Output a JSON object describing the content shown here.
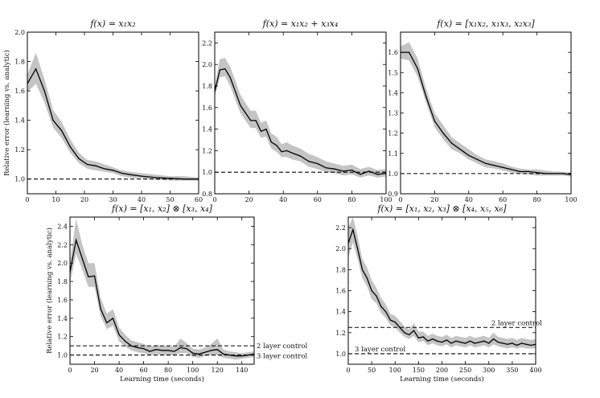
{
  "chart_data": [
    {
      "type": "line",
      "title": "f(x) = x₁x₂",
      "ylabel": "Relative error (learning vs. analytic)",
      "xlabel": "",
      "xlim": [
        0,
        60
      ],
      "ylim": [
        0.9,
        2.0
      ],
      "xticks": [
        0,
        10,
        20,
        30,
        40,
        50,
        60
      ],
      "yticks": [
        1.0,
        1.2,
        1.4,
        1.6,
        1.8,
        2.0
      ],
      "x": [
        0,
        3,
        6,
        9,
        12,
        15,
        18,
        21,
        24,
        27,
        30,
        33,
        36,
        40,
        45,
        50,
        55,
        60
      ],
      "y": [
        1.65,
        1.75,
        1.6,
        1.4,
        1.33,
        1.22,
        1.14,
        1.1,
        1.09,
        1.07,
        1.06,
        1.04,
        1.03,
        1.02,
        1.01,
        1.005,
        1.0,
        1.0
      ],
      "lower": [
        1.59,
        1.65,
        1.52,
        1.35,
        1.28,
        1.18,
        1.11,
        1.07,
        1.06,
        1.05,
        1.04,
        1.02,
        1.01,
        1.005,
        0.995,
        0.99,
        0.99,
        0.99
      ],
      "upper": [
        1.71,
        1.86,
        1.68,
        1.47,
        1.39,
        1.27,
        1.18,
        1.13,
        1.12,
        1.1,
        1.08,
        1.06,
        1.05,
        1.04,
        1.03,
        1.02,
        1.02,
        1.01
      ],
      "hlines": [
        {
          "y": 1.0,
          "label": ""
        }
      ]
    },
    {
      "type": "line",
      "title": "f(x) = x₁x₂ + x₃x₄",
      "xlabel": "",
      "ylabel": "",
      "xlim": [
        0,
        100
      ],
      "ylim": [
        0.8,
        2.3
      ],
      "xticks": [
        0,
        20,
        40,
        60,
        80,
        100
      ],
      "yticks": [
        0.8,
        1.0,
        1.2,
        1.4,
        1.6,
        1.8,
        2.0,
        2.2
      ],
      "x": [
        0,
        3,
        6,
        9,
        12,
        15,
        18,
        21,
        24,
        27,
        30,
        33,
        36,
        39,
        42,
        45,
        50,
        55,
        60,
        65,
        70,
        75,
        80,
        85,
        90,
        95,
        100
      ],
      "y": [
        1.75,
        1.95,
        1.96,
        1.88,
        1.75,
        1.62,
        1.55,
        1.48,
        1.48,
        1.38,
        1.4,
        1.28,
        1.25,
        1.19,
        1.2,
        1.18,
        1.15,
        1.1,
        1.08,
        1.04,
        1.03,
        1.01,
        1.02,
        0.98,
        1.01,
        0.98,
        0.99
      ],
      "lower": [
        1.7,
        1.88,
        1.89,
        1.8,
        1.67,
        1.55,
        1.48,
        1.41,
        1.41,
        1.32,
        1.33,
        1.22,
        1.19,
        1.14,
        1.14,
        1.12,
        1.1,
        1.05,
        1.03,
        1.0,
        0.99,
        0.97,
        0.98,
        0.95,
        0.97,
        0.95,
        0.96
      ],
      "upper": [
        1.8,
        2.05,
        2.06,
        1.98,
        1.85,
        1.72,
        1.64,
        1.57,
        1.57,
        1.46,
        1.48,
        1.36,
        1.33,
        1.26,
        1.28,
        1.25,
        1.22,
        1.17,
        1.14,
        1.1,
        1.08,
        1.06,
        1.07,
        1.03,
        1.05,
        1.02,
        1.03
      ],
      "hlines": [
        {
          "y": 1.0,
          "label": ""
        }
      ]
    },
    {
      "type": "line",
      "title": "f(x) = [x₁x₂, x₁x₃, x₂x₃]",
      "xlabel": "",
      "ylabel": "",
      "xlim": [
        0,
        100
      ],
      "ylim": [
        0.9,
        1.7
      ],
      "xticks": [
        0,
        20,
        40,
        60,
        80,
        100
      ],
      "yticks": [
        0.9,
        1.0,
        1.1,
        1.2,
        1.3,
        1.4,
        1.5,
        1.6
      ],
      "x": [
        0,
        5,
        10,
        15,
        20,
        25,
        30,
        35,
        40,
        45,
        50,
        55,
        60,
        65,
        70,
        75,
        80,
        85,
        90,
        95,
        100
      ],
      "y": [
        1.6,
        1.6,
        1.52,
        1.38,
        1.26,
        1.2,
        1.15,
        1.12,
        1.09,
        1.07,
        1.05,
        1.04,
        1.03,
        1.02,
        1.01,
        1.01,
        1.005,
        1.0,
        1.0,
        1.0,
        0.995
      ],
      "lower": [
        1.57,
        1.56,
        1.48,
        1.35,
        1.23,
        1.17,
        1.12,
        1.1,
        1.07,
        1.05,
        1.03,
        1.025,
        1.015,
        1.005,
        1.0,
        0.995,
        0.99,
        0.99,
        0.99,
        0.99,
        0.985
      ],
      "upper": [
        1.63,
        1.65,
        1.57,
        1.42,
        1.3,
        1.24,
        1.18,
        1.15,
        1.12,
        1.09,
        1.07,
        1.06,
        1.05,
        1.035,
        1.025,
        1.02,
        1.02,
        1.015,
        1.01,
        1.01,
        1.005
      ],
      "hlines": [
        {
          "y": 1.0,
          "label": ""
        }
      ]
    },
    {
      "type": "line",
      "title": "f(x) = [x₁, x₂] ⊗ [x₃, x₄]",
      "xlabel": "Learning time (seconds)",
      "ylabel": "Relative error (learning vs. analytic)",
      "xlim": [
        0,
        150
      ],
      "ylim": [
        0.9,
        2.5
      ],
      "xticks": [
        0,
        20,
        40,
        60,
        80,
        100,
        120,
        140
      ],
      "yticks": [
        1.0,
        1.2,
        1.4,
        1.6,
        1.8,
        2.0,
        2.2,
        2.4
      ],
      "x": [
        0,
        5,
        10,
        15,
        20,
        25,
        30,
        35,
        40,
        45,
        50,
        55,
        60,
        65,
        70,
        75,
        80,
        85,
        90,
        95,
        100,
        105,
        110,
        115,
        120,
        125,
        130,
        135,
        140,
        145,
        150
      ],
      "y": [
        1.9,
        2.25,
        2.05,
        1.85,
        1.86,
        1.5,
        1.35,
        1.4,
        1.22,
        1.15,
        1.1,
        1.08,
        1.07,
        1.04,
        1.06,
        1.05,
        1.05,
        1.04,
        1.08,
        1.07,
        1.02,
        1.01,
        1.03,
        1.05,
        1.06,
        1.01,
        1.0,
        0.99,
        0.99,
        1.0,
        1.01
      ],
      "lower": [
        1.78,
        2.1,
        1.93,
        1.74,
        1.74,
        1.42,
        1.28,
        1.32,
        1.15,
        1.09,
        1.05,
        1.03,
        1.02,
        1.0,
        1.01,
        1.0,
        1.0,
        1.0,
        1.02,
        1.02,
        0.98,
        0.97,
        0.99,
        1.0,
        1.0,
        0.97,
        0.96,
        0.95,
        0.96,
        0.97,
        0.98
      ],
      "upper": [
        2.0,
        2.48,
        2.2,
        2.0,
        2.0,
        1.62,
        1.45,
        1.5,
        1.3,
        1.22,
        1.16,
        1.14,
        1.12,
        1.09,
        1.11,
        1.1,
        1.1,
        1.09,
        1.18,
        1.13,
        1.07,
        1.06,
        1.08,
        1.12,
        1.18,
        1.06,
        1.04,
        1.03,
        1.02,
        1.03,
        1.04
      ],
      "hlines": [
        {
          "y": 1.1,
          "label": "2 layer control"
        },
        {
          "y": 1.0,
          "label": "3 layer control"
        }
      ]
    },
    {
      "type": "line",
      "title": "f(x) = [x₁, x₂, x₃] ⊗ [x₄, x₅, x₆]",
      "xlabel": "Learning time (seconds)",
      "ylabel": "",
      "xlim": [
        0,
        400
      ],
      "ylim": [
        0.9,
        2.3
      ],
      "xticks": [
        0,
        50,
        100,
        150,
        200,
        250,
        300,
        350,
        400
      ],
      "yticks": [
        1.0,
        1.2,
        1.4,
        1.6,
        1.8,
        2.0,
        2.2
      ],
      "x": [
        0,
        10,
        20,
        30,
        40,
        50,
        60,
        70,
        80,
        90,
        100,
        110,
        120,
        130,
        140,
        150,
        160,
        170,
        180,
        190,
        200,
        210,
        220,
        230,
        240,
        250,
        260,
        270,
        280,
        290,
        300,
        310,
        320,
        330,
        340,
        350,
        360,
        370,
        380,
        390,
        400
      ],
      "y": [
        2.05,
        2.18,
        2.0,
        1.8,
        1.72,
        1.6,
        1.55,
        1.45,
        1.4,
        1.32,
        1.3,
        1.25,
        1.2,
        1.18,
        1.22,
        1.15,
        1.16,
        1.12,
        1.14,
        1.12,
        1.11,
        1.13,
        1.1,
        1.12,
        1.11,
        1.1,
        1.12,
        1.1,
        1.11,
        1.12,
        1.1,
        1.14,
        1.11,
        1.1,
        1.09,
        1.1,
        1.08,
        1.1,
        1.09,
        1.08,
        1.09
      ],
      "lower": [
        1.92,
        2.06,
        1.9,
        1.72,
        1.64,
        1.52,
        1.48,
        1.39,
        1.34,
        1.27,
        1.25,
        1.2,
        1.16,
        1.14,
        1.17,
        1.11,
        1.12,
        1.08,
        1.1,
        1.08,
        1.07,
        1.09,
        1.06,
        1.08,
        1.07,
        1.06,
        1.08,
        1.06,
        1.07,
        1.08,
        1.06,
        1.09,
        1.07,
        1.06,
        1.05,
        1.06,
        1.05,
        1.06,
        1.05,
        1.05,
        1.05
      ],
      "upper": [
        2.2,
        2.3,
        2.12,
        1.9,
        1.82,
        1.7,
        1.63,
        1.53,
        1.47,
        1.38,
        1.36,
        1.31,
        1.26,
        1.23,
        1.29,
        1.21,
        1.21,
        1.17,
        1.19,
        1.17,
        1.16,
        1.18,
        1.15,
        1.17,
        1.16,
        1.15,
        1.17,
        1.15,
        1.16,
        1.17,
        1.15,
        1.2,
        1.16,
        1.15,
        1.14,
        1.15,
        1.13,
        1.15,
        1.14,
        1.13,
        1.14
      ],
      "hlines": [
        {
          "y": 1.25,
          "label": "2 layer control"
        },
        {
          "y": 1.0,
          "label": "3 layer control"
        }
      ]
    }
  ]
}
